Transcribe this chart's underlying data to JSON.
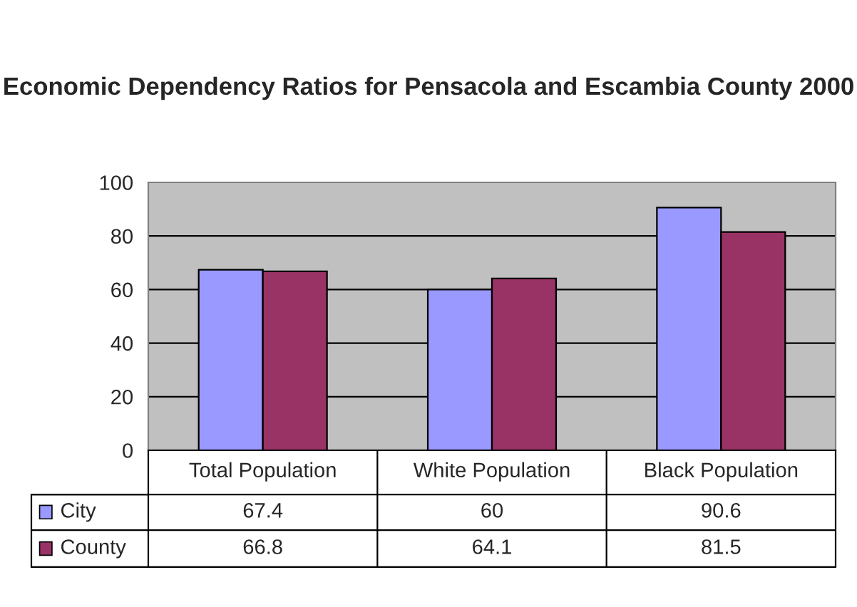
{
  "chart_data": {
    "type": "bar",
    "title": "Economic Dependency Ratios for Pensacola and Escambia County 2000",
    "categories": [
      "Total Population",
      "White Population",
      "Black Population"
    ],
    "series": [
      {
        "name": "City",
        "color": "#9999ff",
        "values": [
          67.4,
          60,
          90.6
        ]
      },
      {
        "name": "County",
        "color": "#993366",
        "values": [
          66.8,
          64.1,
          81.5
        ]
      }
    ],
    "ylim": [
      0,
      100
    ],
    "yticks": [
      0,
      20,
      40,
      60,
      80,
      100
    ],
    "grid": "y",
    "data_labels": true,
    "legend": "bottom left"
  }
}
